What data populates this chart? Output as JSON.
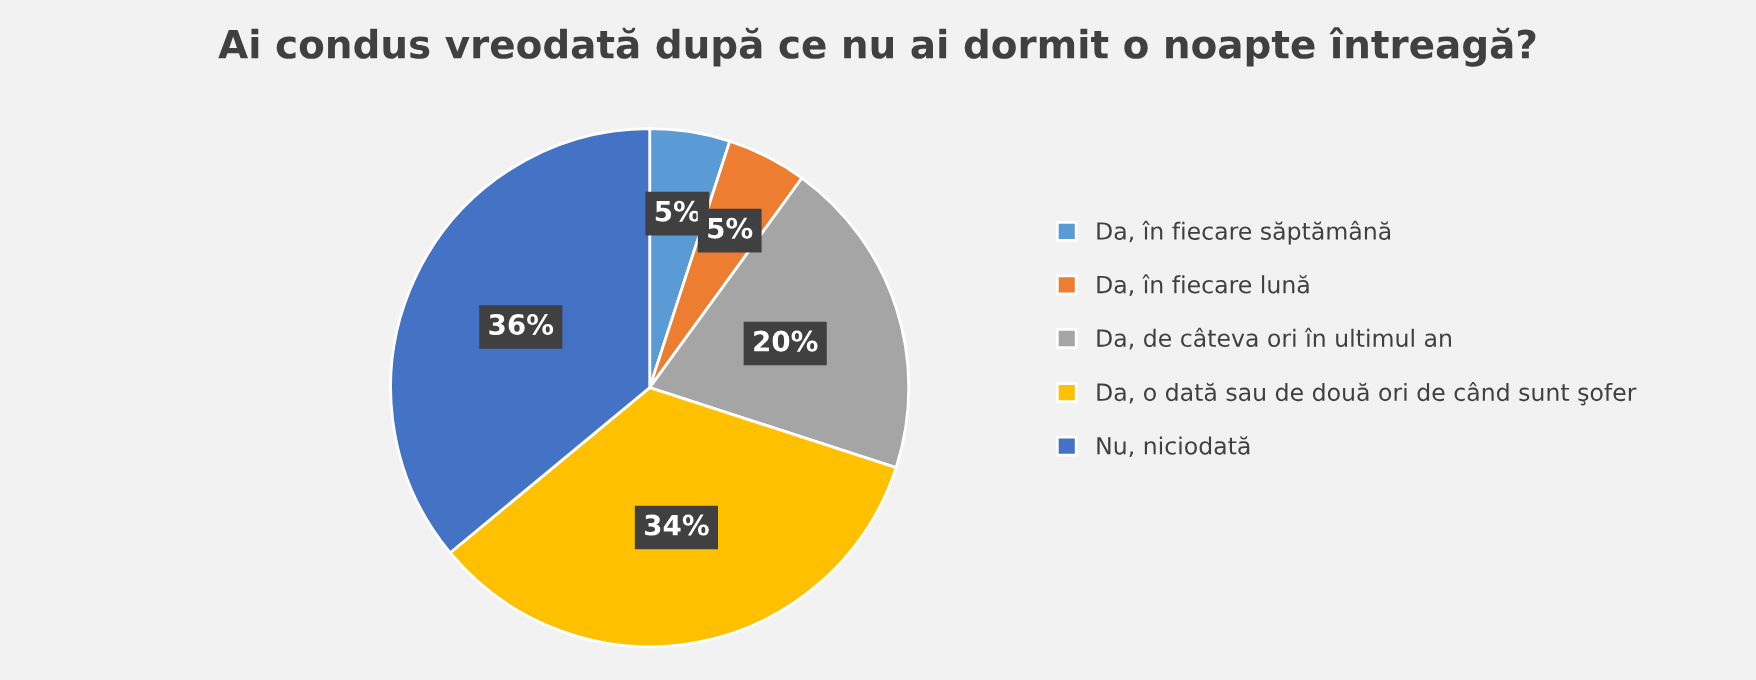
{
  "chart_data": {
    "type": "pie",
    "title": "Ai condus vreodată după ce nu ai dormit o noapte întreagă?",
    "categories": [
      "Da, în fiecare săptămână",
      "Da, în fiecare lună",
      "Da, de câteva ori în ultimul an",
      "Da, o dată sau de două ori de când sunt şofer",
      "Nu, niciodată"
    ],
    "values": [
      5,
      5,
      20,
      34,
      36
    ],
    "colors": [
      "#5b9bd5",
      "#ed7d31",
      "#a5a5a5",
      "#ffc000",
      "#4472c4"
    ],
    "value_labels": [
      "5%",
      "5%",
      "20%",
      "34%",
      "36%"
    ],
    "legend": "right"
  }
}
